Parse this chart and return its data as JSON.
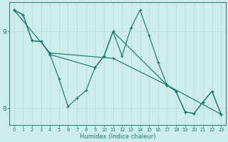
{
  "xlabel": "Humidex (Indice chaleur)",
  "bg_color": "#ceecea",
  "line_color": "#1a7a6e",
  "grid_color": "#b8dbd8",
  "xlim": [
    -0.5,
    23.5
  ],
  "ylim": [
    7.78,
    9.38
  ],
  "yticks": [
    8,
    9
  ],
  "xticks": [
    0,
    1,
    2,
    3,
    4,
    5,
    6,
    7,
    8,
    9,
    10,
    11,
    12,
    13,
    14,
    15,
    16,
    17,
    18,
    19,
    20,
    21,
    22,
    23
  ],
  "series_jagged_x": [
    0,
    1,
    2,
    3,
    4,
    5,
    6,
    7,
    8,
    9,
    10,
    11,
    12,
    13,
    14,
    15,
    16,
    17,
    18,
    19,
    20,
    21,
    22,
    23
  ],
  "series_jagged_y": [
    9.28,
    9.22,
    8.88,
    8.87,
    8.7,
    8.38,
    8.02,
    8.13,
    8.23,
    8.53,
    8.68,
    9.0,
    8.68,
    9.05,
    9.28,
    8.95,
    8.6,
    8.3,
    8.22,
    7.95,
    7.93,
    8.08,
    8.22,
    7.92
  ],
  "series_smooth1_x": [
    0,
    1,
    2,
    3,
    4,
    9,
    10,
    11,
    17,
    18,
    19,
    20,
    21,
    22,
    23
  ],
  "series_smooth1_y": [
    9.28,
    9.22,
    8.88,
    8.87,
    8.7,
    8.53,
    8.68,
    9.0,
    8.3,
    8.22,
    7.95,
    7.93,
    8.08,
    8.22,
    7.92
  ],
  "series_trend_x": [
    0,
    4,
    11,
    17,
    23
  ],
  "series_trend_y": [
    9.28,
    8.72,
    8.65,
    8.3,
    7.92
  ]
}
